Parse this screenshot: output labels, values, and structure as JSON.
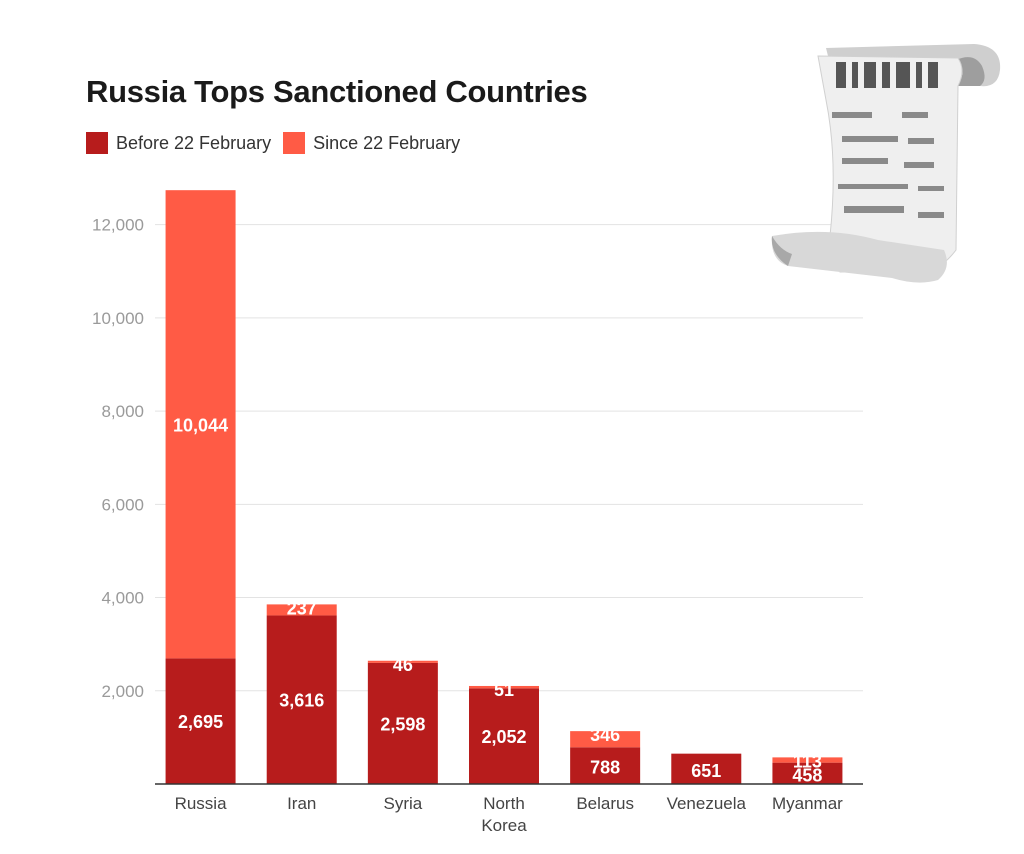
{
  "chart_data": {
    "type": "bar",
    "stacked": true,
    "title": "Russia Tops Sanctioned Countries",
    "categories": [
      "Russia",
      "Iran",
      "Syria",
      "North Korea",
      "Belarus",
      "Venezuela",
      "Myanmar"
    ],
    "category_lines": [
      [
        "Russia"
      ],
      [
        "Iran"
      ],
      [
        "Syria"
      ],
      [
        "North",
        "Korea"
      ],
      [
        "Belarus"
      ],
      [
        "Venezuela"
      ],
      [
        "Myanmar"
      ]
    ],
    "series": [
      {
        "name": "Before 22 February",
        "color": "#b71c1c",
        "values": [
          2695,
          3616,
          2598,
          2052,
          788,
          651,
          458
        ],
        "labels": [
          "2,695",
          "3,616",
          "2,598",
          "2,052",
          "788",
          "651",
          "458"
        ]
      },
      {
        "name": "Since 22 February",
        "color": "#ff5b45",
        "values": [
          10044,
          237,
          46,
          51,
          346,
          0,
          113
        ],
        "labels": [
          "10,044",
          "237",
          "46",
          "51",
          "346",
          "",
          "113"
        ]
      }
    ],
    "ylim": [
      0,
      12700
    ],
    "yticks": [
      2000,
      4000,
      6000,
      8000,
      10000,
      12000
    ],
    "ytick_labels": [
      "2,000",
      "4,000",
      "6,000",
      "8,000",
      "10,000",
      "12,000"
    ],
    "grid": true,
    "legend_position": "top-left"
  },
  "decoration": {
    "icon": "receipt-icon"
  }
}
